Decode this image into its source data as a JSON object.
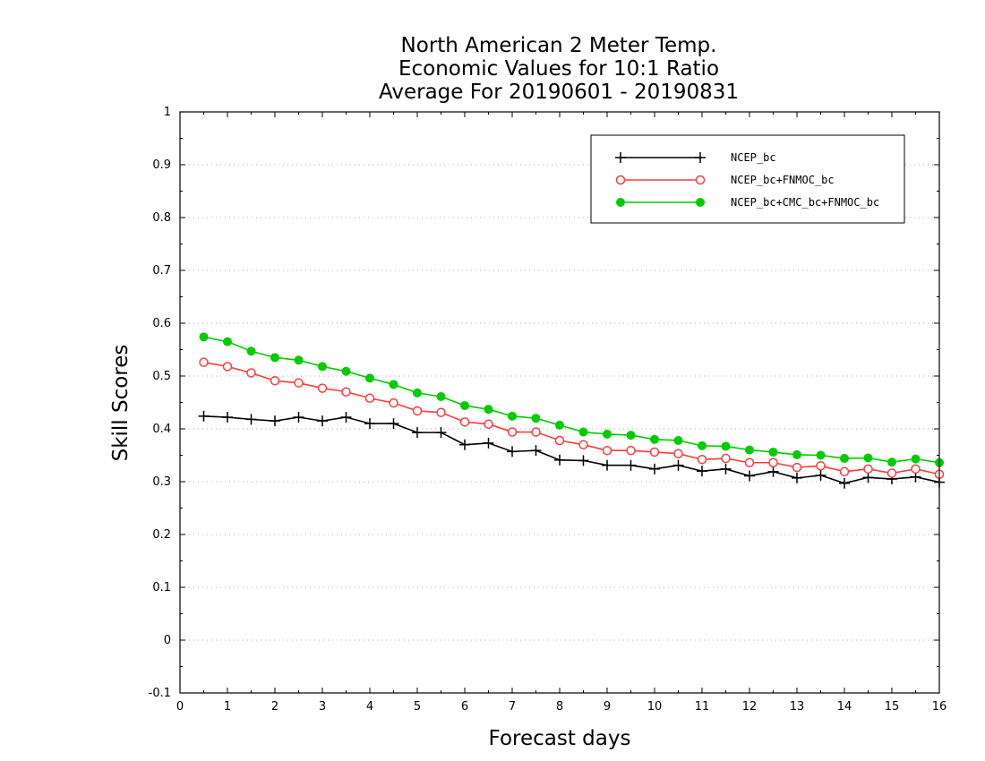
{
  "chart_data": {
    "type": "line",
    "title_lines": [
      "North American 2 Meter Temp.",
      "Economic Values for 10:1 Ratio",
      "Average For 20190601 - 20190831"
    ],
    "xlabel": "Forecast days",
    "ylabel": "Skill Scores",
    "xlim": [
      0,
      16
    ],
    "ylim": [
      -0.1,
      1
    ],
    "x_ticks": [
      0,
      1,
      2,
      3,
      4,
      5,
      6,
      7,
      8,
      9,
      10,
      11,
      12,
      13,
      14,
      15,
      16
    ],
    "y_ticks": [
      -0.1,
      0,
      0.1,
      0.2,
      0.3,
      0.4,
      0.5,
      0.6,
      0.7,
      0.8,
      0.9,
      1
    ],
    "y_tick_labels": [
      "-0.1",
      "0",
      "0.1",
      "0.2",
      "0.3",
      "0.4",
      "0.5",
      "0.6",
      "0.7",
      "0.8",
      "0.9",
      "1"
    ],
    "grid": "horizontal dotted",
    "legend_position": "top-right",
    "x": [
      0.5,
      1,
      1.5,
      2,
      2.5,
      3,
      3.5,
      4,
      4.5,
      5,
      5.5,
      6,
      6.5,
      7,
      7.5,
      8,
      8.5,
      9,
      9.5,
      10,
      10.5,
      11,
      11.5,
      12,
      12.5,
      13,
      13.5,
      14,
      14.5,
      15,
      15.5,
      16
    ],
    "series": [
      {
        "name": "NCEP_bc",
        "color": "#000000",
        "marker": "plus",
        "values": [
          0.424,
          0.422,
          0.418,
          0.415,
          0.422,
          0.415,
          0.422,
          0.41,
          0.41,
          0.393,
          0.393,
          0.37,
          0.373,
          0.357,
          0.359,
          0.341,
          0.34,
          0.331,
          0.331,
          0.324,
          0.331,
          0.32,
          0.324,
          0.311,
          0.319,
          0.307,
          0.312,
          0.297,
          0.308,
          0.305,
          0.309,
          0.299
        ]
      },
      {
        "name": "NCEP_bc+FNMOC_bc",
        "color": "#ff3b3b",
        "marker": "open-circle",
        "values": [
          0.526,
          0.518,
          0.506,
          0.491,
          0.487,
          0.477,
          0.47,
          0.458,
          0.449,
          0.434,
          0.431,
          0.413,
          0.409,
          0.394,
          0.394,
          0.378,
          0.37,
          0.359,
          0.359,
          0.356,
          0.353,
          0.342,
          0.344,
          0.336,
          0.336,
          0.327,
          0.33,
          0.319,
          0.324,
          0.316,
          0.324,
          0.314
        ]
      },
      {
        "name": "NCEP_bc+CMC_bc+FNMOC_bc",
        "color": "#00cc00",
        "marker": "filled-circle",
        "values": [
          0.574,
          0.565,
          0.547,
          0.535,
          0.53,
          0.518,
          0.509,
          0.496,
          0.484,
          0.468,
          0.461,
          0.444,
          0.437,
          0.424,
          0.42,
          0.407,
          0.394,
          0.39,
          0.388,
          0.38,
          0.378,
          0.368,
          0.367,
          0.36,
          0.356,
          0.351,
          0.35,
          0.344,
          0.345,
          0.337,
          0.343,
          0.336
        ]
      }
    ]
  }
}
